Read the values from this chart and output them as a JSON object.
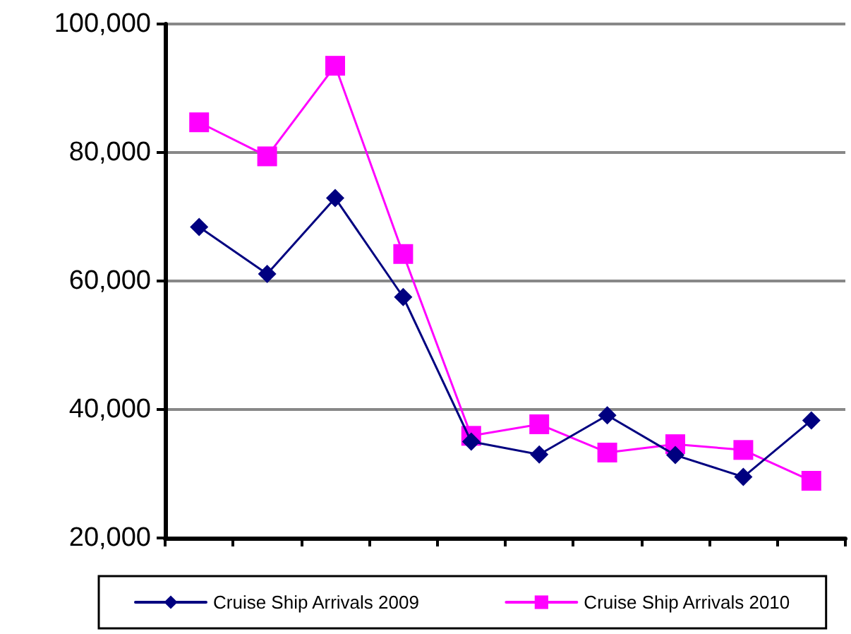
{
  "chart_data": {
    "type": "line",
    "categories": [
      null,
      null,
      null,
      null,
      null,
      null,
      null,
      null,
      null,
      null
    ],
    "series": [
      {
        "name": "Cruise Ship Arrivals 2009",
        "color": "#000080",
        "marker": "diamond",
        "values": [
          68400,
          61100,
          72900,
          57500,
          35000,
          33000,
          39100,
          32900,
          29500,
          38300
        ]
      },
      {
        "name": "Cruise Ship Arrivals 2010",
        "color": "#ff00ff",
        "marker": "square",
        "values": [
          84700,
          79400,
          93500,
          64200,
          35900,
          37700,
          33300,
          34600,
          33700,
          28900
        ]
      }
    ],
    "ylim": [
      20000,
      100000
    ],
    "yticks": [
      {
        "value": 20000,
        "label": "20,000"
      },
      {
        "value": 40000,
        "label": "40,000"
      },
      {
        "value": 60000,
        "label": "60,000"
      },
      {
        "value": 80000,
        "label": "80,000"
      },
      {
        "value": 100000,
        "label": "100,000"
      }
    ],
    "grid": "y",
    "legend": "bottom",
    "line_style": "solid"
  }
}
